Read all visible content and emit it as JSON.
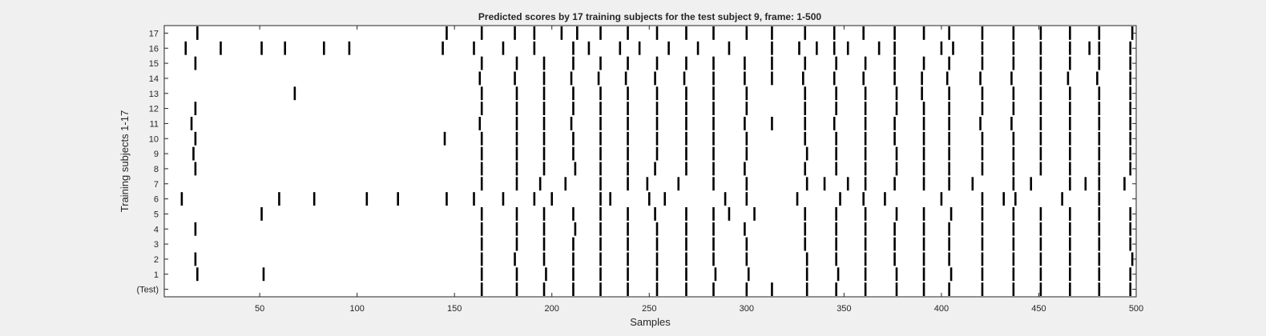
{
  "chart_data": {
    "type": "raster",
    "title": "Predicted scores by 17 training subjects for the test subject 9, frame: 1-500",
    "xlabel": "Samples",
    "ylabel": "Training subjects 1-17",
    "xlim": [
      1,
      500
    ],
    "xticks": [
      50,
      100,
      150,
      200,
      250,
      300,
      350,
      400,
      450,
      500
    ],
    "rows": [
      "(Test)",
      "1",
      "2",
      "3",
      "4",
      "5",
      "6",
      "7",
      "8",
      "9",
      "10",
      "11",
      "12",
      "13",
      "14",
      "15",
      "16",
      "17"
    ],
    "grid": false,
    "series": [
      {
        "row": "(Test)",
        "x": [
          164,
          182,
          196,
          211,
          225,
          239,
          254,
          269,
          283,
          300,
          313,
          331,
          346,
          361,
          377,
          391,
          404,
          421,
          437,
          451,
          466,
          481,
          497
        ]
      },
      {
        "row": "1",
        "x": [
          18,
          52,
          164,
          182,
          197,
          211,
          225,
          239,
          254,
          269,
          284,
          301,
          331,
          347,
          361,
          377,
          391,
          405,
          421,
          437,
          451,
          466,
          481,
          497
        ]
      },
      {
        "row": "2",
        "x": [
          17,
          164,
          181,
          196,
          211,
          225,
          239,
          254,
          269,
          283,
          300,
          331,
          346,
          361,
          376,
          391,
          404,
          421,
          437,
          451,
          466,
          481,
          498
        ]
      },
      {
        "row": "3",
        "x": [
          164,
          182,
          196,
          211,
          225,
          239,
          254,
          269,
          283,
          300,
          330,
          346,
          361,
          376,
          391,
          404,
          421,
          437,
          451,
          466,
          481,
          497
        ]
      },
      {
        "row": "4",
        "x": [
          17,
          164,
          182,
          196,
          212,
          225,
          239,
          254,
          269,
          283,
          299,
          330,
          346,
          361,
          376,
          391,
          404,
          421,
          437,
          451,
          466,
          481,
          497
        ]
      },
      {
        "row": "5",
        "x": [
          51,
          164,
          182,
          196,
          211,
          225,
          239,
          253,
          269,
          283,
          291,
          304,
          330,
          346,
          361,
          377,
          391,
          405,
          421,
          437,
          451,
          466,
          481,
          497
        ]
      },
      {
        "row": "6",
        "x": [
          10,
          60,
          78,
          105,
          121,
          146,
          160,
          175,
          191,
          200,
          225,
          230,
          250,
          258,
          289,
          300,
          326,
          348,
          360,
          371,
          400,
          421,
          432,
          438,
          462,
          481
        ]
      },
      {
        "row": "7",
        "x": [
          164,
          182,
          194,
          207,
          225,
          239,
          249,
          265,
          283,
          300,
          331,
          340,
          352,
          361,
          376,
          391,
          404,
          416,
          437,
          446,
          466,
          474,
          481,
          494
        ]
      },
      {
        "row": "8",
        "x": [
          17,
          164,
          182,
          196,
          212,
          225,
          239,
          253,
          269,
          283,
          299,
          330,
          346,
          361,
          377,
          391,
          404,
          421,
          437,
          451,
          466,
          481,
          497
        ]
      },
      {
        "row": "9",
        "x": [
          16,
          164,
          182,
          196,
          211,
          225,
          239,
          254,
          269,
          283,
          300,
          331,
          346,
          361,
          377,
          391,
          404,
          421,
          437,
          451,
          466,
          481,
          497
        ]
      },
      {
        "row": "10",
        "x": [
          17,
          145,
          164,
          182,
          196,
          211,
          225,
          239,
          254,
          269,
          283,
          300,
          330,
          346,
          361,
          376,
          391,
          404,
          421,
          437,
          451,
          466,
          481,
          497
        ]
      },
      {
        "row": "11",
        "x": [
          15,
          163,
          182,
          196,
          210,
          225,
          239,
          254,
          269,
          283,
          299,
          313,
          330,
          345,
          361,
          376,
          391,
          404,
          420,
          436,
          451,
          466,
          481,
          497
        ]
      },
      {
        "row": "12",
        "x": [
          17,
          164,
          182,
          196,
          211,
          225,
          239,
          254,
          269,
          283,
          300,
          330,
          346,
          361,
          377,
          391,
          404,
          421,
          437,
          451,
          466,
          481,
          497
        ]
      },
      {
        "row": "13",
        "x": [
          68,
          164,
          182,
          196,
          211,
          225,
          239,
          254,
          269,
          283,
          300,
          330,
          346,
          361,
          377,
          390,
          404,
          421,
          437,
          451,
          466,
          481,
          497
        ]
      },
      {
        "row": "14",
        "x": [
          163,
          181,
          196,
          210,
          224,
          238,
          253,
          268,
          283,
          299,
          313,
          329,
          345,
          360,
          376,
          390,
          403,
          420,
          436,
          451,
          465,
          480,
          497
        ]
      },
      {
        "row": "15",
        "x": [
          17,
          164,
          182,
          196,
          211,
          225,
          239,
          254,
          269,
          283,
          299,
          313,
          330,
          346,
          361,
          376,
          391,
          404,
          421,
          437,
          451,
          466,
          481,
          497
        ]
      },
      {
        "row": "16",
        "x": [
          12,
          30,
          51,
          63,
          83,
          96,
          144,
          160,
          175,
          191,
          211,
          219,
          235,
          245,
          260,
          275,
          291,
          313,
          327,
          336,
          345,
          352,
          368,
          376,
          400,
          406,
          421,
          437,
          451,
          466,
          476,
          481,
          497
        ]
      },
      {
        "row": "17",
        "x": [
          18,
          146,
          164,
          181,
          191,
          205,
          213,
          225,
          239,
          254,
          269,
          283,
          300,
          313,
          330,
          345,
          360,
          376,
          391,
          404,
          421,
          437,
          451,
          466,
          481,
          498
        ]
      }
    ]
  }
}
